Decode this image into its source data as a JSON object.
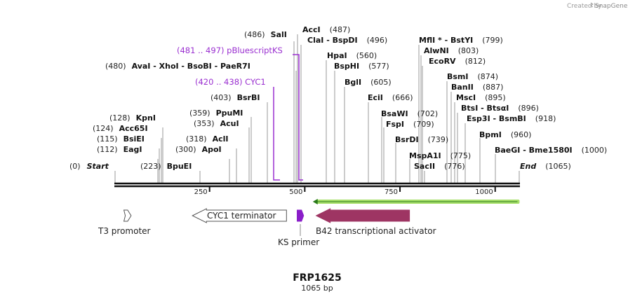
{
  "credit": {
    "text": "Created by",
    "brand": "SnapGene"
  },
  "map": {
    "name": "FRP1625",
    "length_label": "1065 bp",
    "length": 1065,
    "start_label": "Start",
    "start_pos": "(0)",
    "end_label": "End",
    "end_pos": "(1065)"
  },
  "ticks": [
    {
      "value": 250,
      "label": "250"
    },
    {
      "value": 500,
      "label": "500"
    },
    {
      "value": 750,
      "label": "750"
    },
    {
      "value": 1000,
      "label": "1000"
    }
  ],
  "sites": [
    {
      "id": "saii",
      "pos": "(486)",
      "name": "SalI",
      "loc": 486
    },
    {
      "id": "acci",
      "pos": "(487)",
      "name": "AccI",
      "loc": 487
    },
    {
      "id": "clai",
      "pos": "(496)",
      "name": "ClaI  -  BspDI",
      "loc": 496
    },
    {
      "id": "avai",
      "pos": "(480)",
      "name": "AvaI  -  XhoI  -  BsoBI  -  PaeR7I",
      "loc": 480
    },
    {
      "id": "hpai",
      "pos": "(560)",
      "name": "HpaI",
      "loc": 560
    },
    {
      "id": "bsphi",
      "pos": "(577)",
      "name": "BspHI",
      "loc": 577
    },
    {
      "id": "bgiii",
      "pos": "(605)",
      "name": "BglI",
      "loc": 605
    },
    {
      "id": "ecii",
      "pos": "(666)",
      "name": "EciI",
      "loc": 666
    },
    {
      "id": "bsawi",
      "pos": "(702)",
      "name": "BsaWI",
      "loc": 702
    },
    {
      "id": "fspi",
      "pos": "(709)",
      "name": "FspI",
      "loc": 709
    },
    {
      "id": "bsrdi",
      "pos": "(739)",
      "name": "BsrDI",
      "loc": 739
    },
    {
      "id": "mspa1i",
      "pos": "(775)",
      "name": "MspA1I",
      "loc": 775
    },
    {
      "id": "sacii",
      "pos": "(776)",
      "name": "SacII",
      "loc": 776
    },
    {
      "id": "mfli",
      "pos": "(799)",
      "name": "MflI * - BstYI",
      "loc": 799
    },
    {
      "id": "alwni",
      "pos": "(803)",
      "name": "AlwNI",
      "loc": 803
    },
    {
      "id": "ecorv",
      "pos": "(812)",
      "name": "EcoRV",
      "loc": 812
    },
    {
      "id": "bsmi",
      "pos": "(874)",
      "name": "BsmI",
      "loc": 874
    },
    {
      "id": "banii",
      "pos": "(887)",
      "name": "BanII",
      "loc": 887
    },
    {
      "id": "msci",
      "pos": "(895)",
      "name": "MscI",
      "loc": 895
    },
    {
      "id": "btsi",
      "pos": "(896)",
      "name": "BtsI  -  BtsαI",
      "loc": 896
    },
    {
      "id": "esp3i",
      "pos": "(918)",
      "name": "Esp3I  -  BsmBI",
      "loc": 918
    },
    {
      "id": "bpmi",
      "pos": "(960)",
      "name": "BpmI",
      "loc": 960
    },
    {
      "id": "baegi",
      "pos": "(1000)",
      "name": "BaeGI  -  Bme1580I",
      "loc": 1000
    },
    {
      "id": "bsrbi",
      "pos": "(403)",
      "name": "BsrBI",
      "loc": 403
    },
    {
      "id": "ppumi",
      "pos": "(359)",
      "name": "PpuMI",
      "loc": 359
    },
    {
      "id": "acui",
      "pos": "(353)",
      "name": "AcuI",
      "loc": 353
    },
    {
      "id": "acli",
      "pos": "(318)",
      "name": "AclI",
      "loc": 318
    },
    {
      "id": "apoi",
      "pos": "(300)",
      "name": "ApoI",
      "loc": 300
    },
    {
      "id": "bpuei",
      "pos": "(223)",
      "name": "BpuEI",
      "loc": 223
    },
    {
      "id": "kpni",
      "pos": "(128)",
      "name": "KpnI",
      "loc": 128
    },
    {
      "id": "acc65i",
      "pos": "(124)",
      "name": "Acc65I",
      "loc": 124
    },
    {
      "id": "bsiei",
      "pos": "(115)",
      "name": "BsiEI",
      "loc": 115
    },
    {
      "id": "eagi",
      "pos": "(112)",
      "name": "EagI",
      "loc": 112
    }
  ],
  "primer_labels": [
    {
      "id": "pbluescript",
      "text": "(481 .. 497)  pBluescriptKS",
      "color": "#9a2fd0"
    },
    {
      "id": "cyc1",
      "text": "(420 .. 438)  CYC1",
      "color": "#9a2fd0"
    }
  ],
  "features": [
    {
      "id": "t3-promoter",
      "label": "T3 promoter",
      "start": 25,
      "end": 44,
      "color": "#ffffff"
    },
    {
      "id": "cyc1-terminator",
      "label": "CYC1 terminator",
      "start": 205,
      "end": 452,
      "color": "#ffffff"
    },
    {
      "id": "ks-primer",
      "label": "KS primer",
      "start": 480,
      "end": 497,
      "color": "#8a1ec9"
    },
    {
      "id": "b42",
      "label": "B42 transcriptional activator",
      "start": 530,
      "end": 775,
      "color": "#9e3563"
    }
  ],
  "orf": {
    "start": 521,
    "end": 1064,
    "color": "#a8e06a"
  }
}
